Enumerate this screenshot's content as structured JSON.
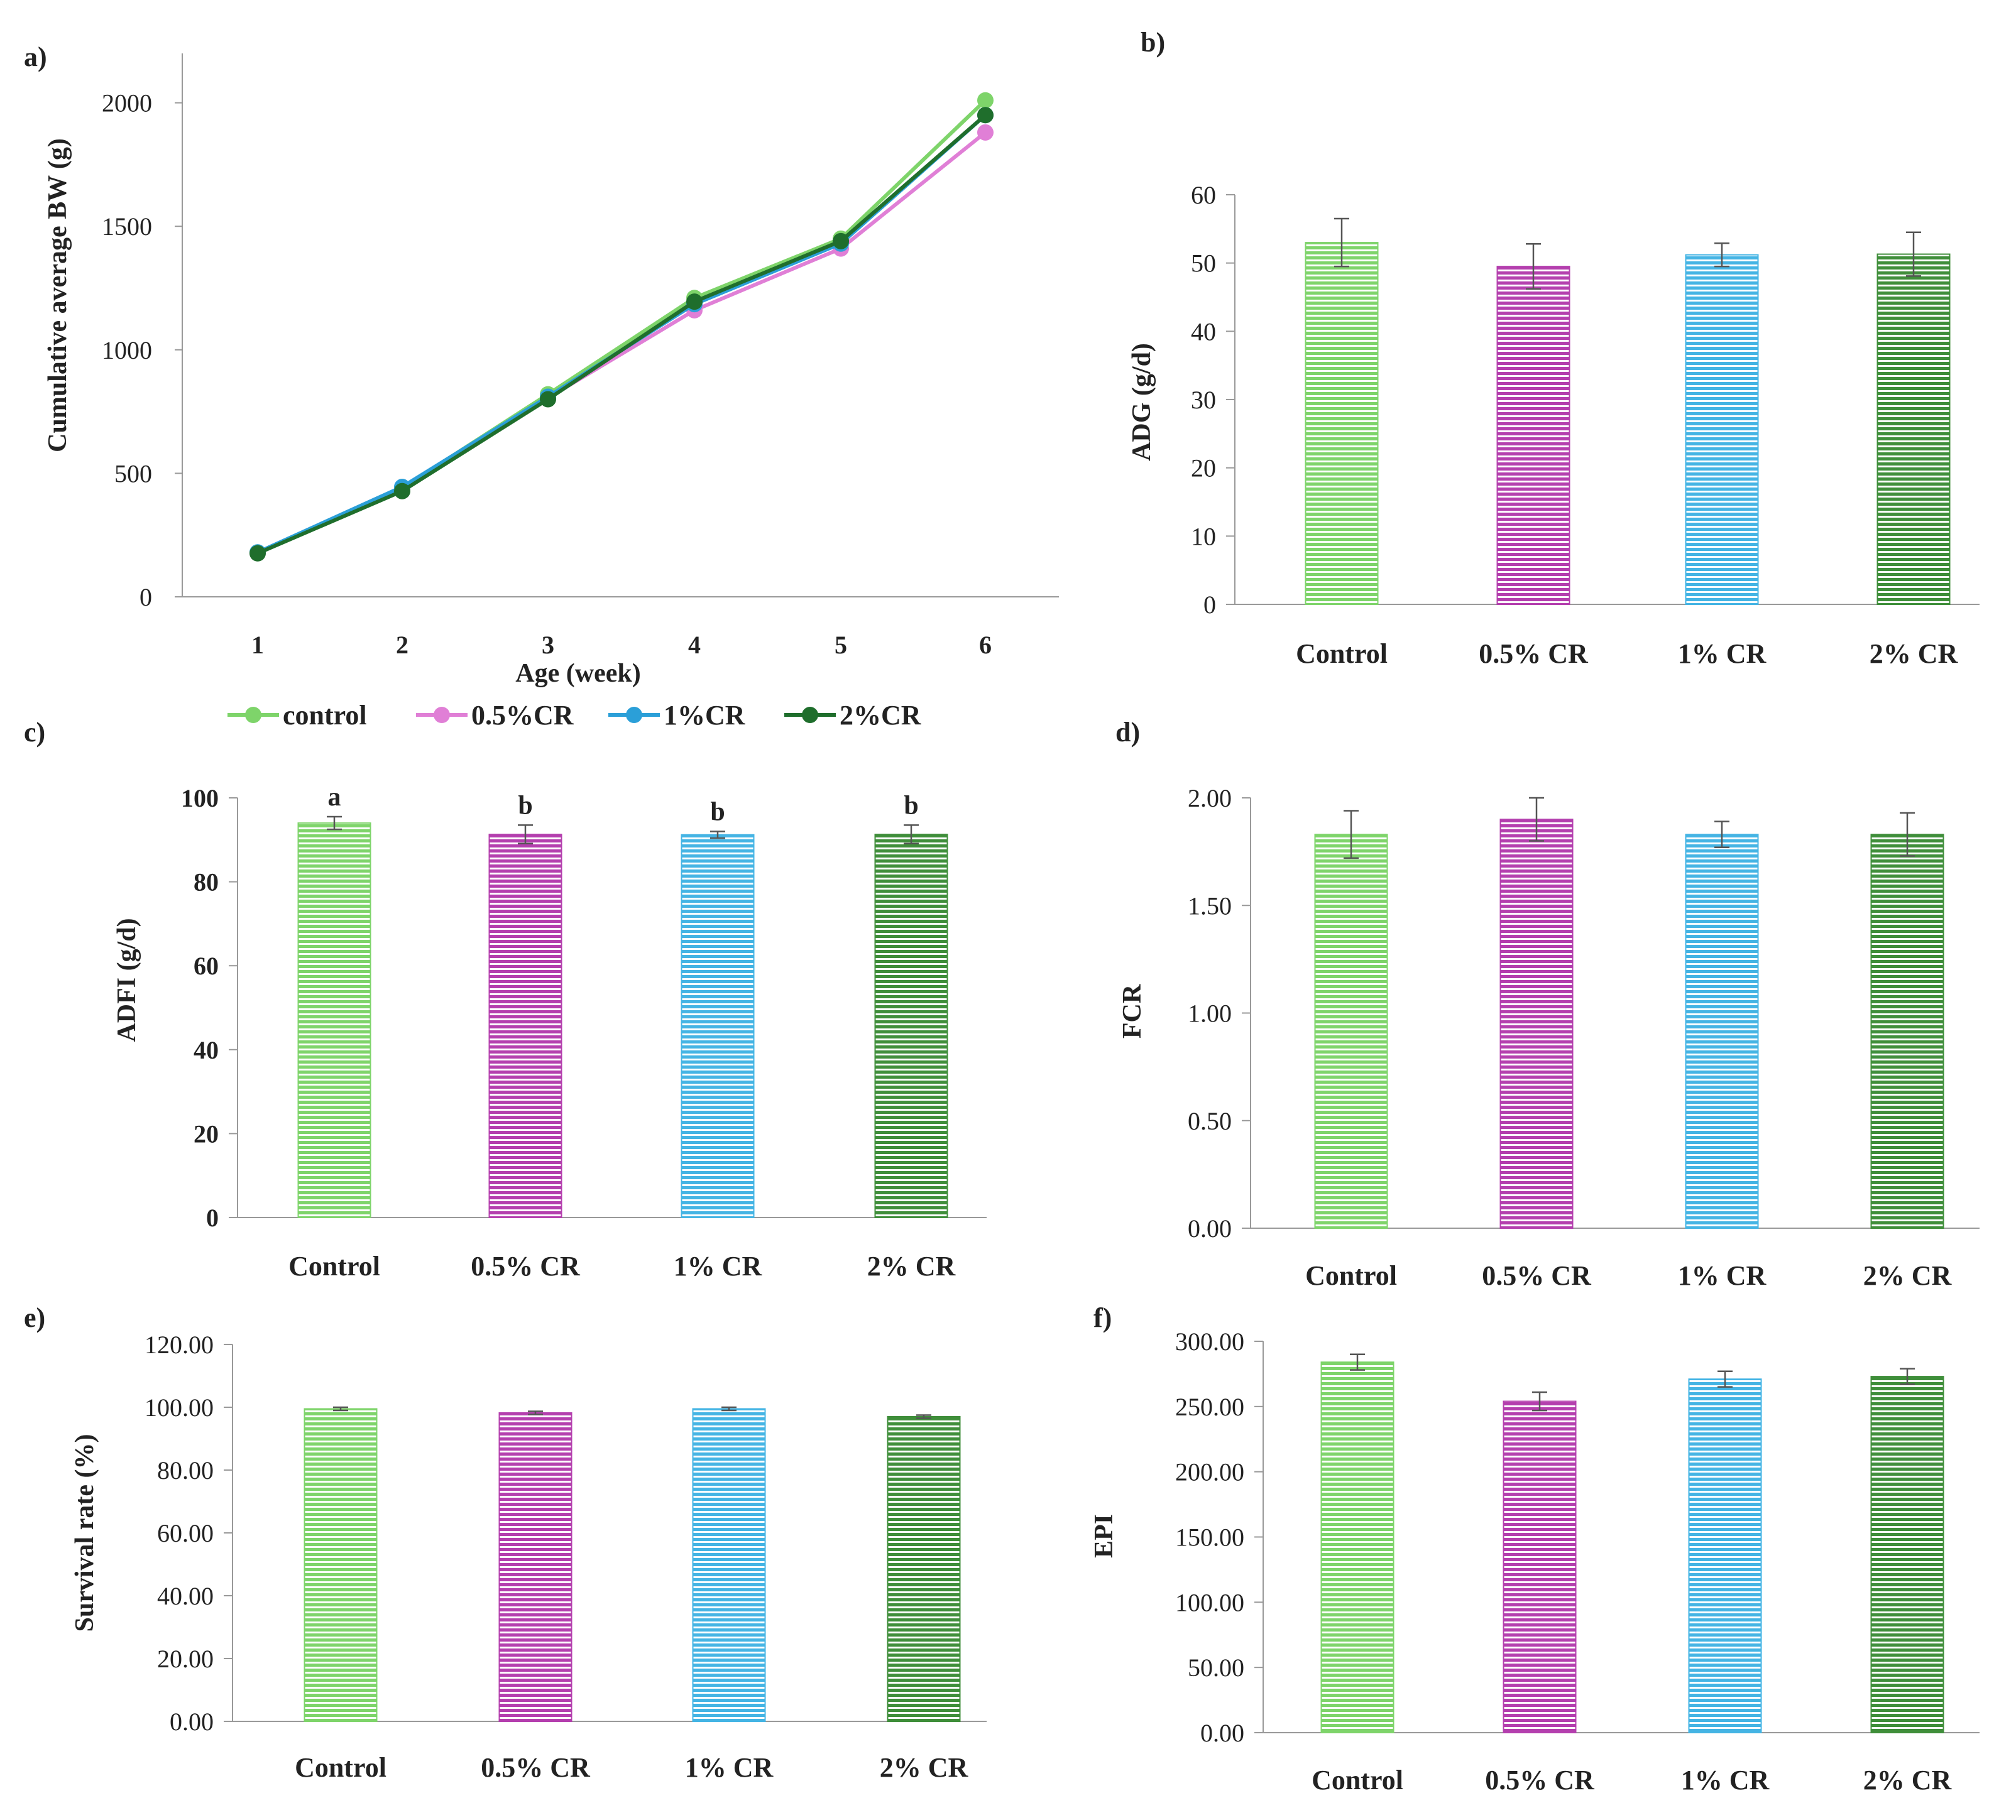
{
  "chart_data": [
    {
      "panel": "a)",
      "type": "line",
      "xlabel": "Age (week)",
      "ylabel": "Cumulative average BW (g)",
      "x": [
        1,
        2,
        3,
        4,
        5,
        6
      ],
      "ylim": [
        0,
        2200
      ],
      "yticks": [
        0,
        500,
        1000,
        1500,
        2000
      ],
      "grid": false,
      "legend": "bottom",
      "series": [
        {
          "name": "control",
          "color": "#7ed46a",
          "values": [
            180,
            440,
            820,
            1210,
            1450,
            2010
          ]
        },
        {
          "name": "0.5%CR",
          "color": "#e07fd6",
          "values": [
            178,
            438,
            805,
            1160,
            1410,
            1880
          ]
        },
        {
          "name": "1%CR",
          "color": "#2b9fd8",
          "values": [
            180,
            445,
            810,
            1185,
            1430,
            1950
          ]
        },
        {
          "name": "2%CR",
          "color": "#1f6e2c",
          "values": [
            176,
            428,
            800,
            1195,
            1440,
            1950
          ]
        }
      ]
    },
    {
      "panel": "b)",
      "type": "bar",
      "ylabel": "ADG (g/d)",
      "categories": [
        "Control",
        "0.5% CR",
        "1% CR",
        "2% CR"
      ],
      "values": [
        53,
        49.5,
        51.2,
        51.3
      ],
      "errors": [
        3.5,
        3.3,
        1.7,
        3.2
      ],
      "ylim": [
        0,
        60
      ],
      "yticks": [
        "0",
        "10",
        "20",
        "30",
        "40",
        "50",
        "60"
      ],
      "grid": false
    },
    {
      "panel": "c)",
      "type": "bar",
      "ylabel": "ADFI (g/d)",
      "categories": [
        "Control",
        "0.5% CR",
        "1% CR",
        "2% CR"
      ],
      "values": [
        94,
        91.3,
        91.2,
        91.3
      ],
      "errors": [
        1.5,
        2.2,
        0.8,
        2.2
      ],
      "significance": [
        "a",
        "b",
        "b",
        "b"
      ],
      "ylim": [
        0,
        100
      ],
      "yticks": [
        "0",
        "20",
        "40",
        "60",
        "80",
        "100"
      ],
      "grid": false
    },
    {
      "panel": "d)",
      "type": "bar",
      "ylabel": "FCR",
      "categories": [
        "Control",
        "0.5% CR",
        "1% CR",
        "2% CR"
      ],
      "values": [
        1.83,
        1.9,
        1.83,
        1.83
      ],
      "errors": [
        0.11,
        0.1,
        0.06,
        0.1
      ],
      "ylim": [
        0,
        2.0
      ],
      "yticks": [
        "0.00",
        "0.50",
        "1.00",
        "1.50",
        "2.00"
      ],
      "grid": false
    },
    {
      "panel": "e)",
      "type": "bar",
      "ylabel": "Survival rate (%)",
      "categories": [
        "Control",
        "0.5% CR",
        "1% CR",
        "2% CR"
      ],
      "values": [
        99.5,
        98.2,
        99.5,
        97
      ],
      "errors": [
        0.5,
        0.5,
        0.5,
        0.5
      ],
      "ylim": [
        0,
        120
      ],
      "yticks": [
        "0.00",
        "20.00",
        "40.00",
        "60.00",
        "80.00",
        "100.00",
        "120.00"
      ],
      "grid": false
    },
    {
      "panel": "f)",
      "type": "bar",
      "ylabel": "EPI",
      "categories": [
        "Control",
        "0.5% CR",
        "1% CR",
        "2% CR"
      ],
      "values": [
        284,
        254,
        271,
        273
      ],
      "errors": [
        6,
        7,
        6,
        6
      ],
      "ylim": [
        0,
        300
      ],
      "yticks": [
        "0.00",
        "50.00",
        "100.00",
        "150.00",
        "200.00",
        "250.00",
        "300.00"
      ],
      "grid": false
    }
  ],
  "colors": {
    "bars": [
      "#7ed46a",
      "#b43fae",
      "#44b4e4",
      "#3f8e3a"
    ],
    "axis": "#999999",
    "error": "#555555"
  }
}
